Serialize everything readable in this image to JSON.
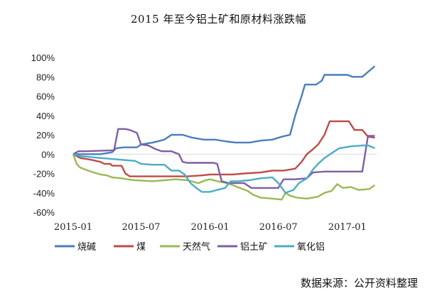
{
  "chart_data": {
    "type": "line",
    "title": "2015 年至今铝土矿和原材料涨跌幅",
    "xlabel": "",
    "ylabel": "",
    "x_tick_labels": [
      "2015-01",
      "2015-07",
      "2016-01",
      "2016-07",
      "2017-01"
    ],
    "x_range": [
      "2015-01-01",
      "2017-03-20"
    ],
    "ylim": [
      -60,
      100
    ],
    "y_tick_values": [
      -60,
      -40,
      -20,
      0,
      20,
      40,
      60,
      80,
      100
    ],
    "y_tick_labels": [
      "-60%",
      "-40%",
      "-20%",
      "0%",
      "20%",
      "40%",
      "60%",
      "80%",
      "100%"
    ],
    "grid": false,
    "legend_position": "bottom",
    "source_note": "数据来源：公开资料整理",
    "series": [
      {
        "name": "烧碱",
        "color": "#4a7ebb",
        "points": [
          [
            "2015-01-01",
            0
          ],
          [
            "2015-01-20",
            0
          ],
          [
            "2015-02-10",
            0
          ],
          [
            "2015-03-15",
            0
          ],
          [
            "2015-04-15",
            2
          ],
          [
            "2015-04-25",
            6
          ],
          [
            "2015-05-15",
            7
          ],
          [
            "2015-06-20",
            7
          ],
          [
            "2015-07-01",
            10
          ],
          [
            "2015-08-01",
            12
          ],
          [
            "2015-09-01",
            15
          ],
          [
            "2015-09-20",
            20
          ],
          [
            "2015-10-20",
            20
          ],
          [
            "2015-11-15",
            17
          ],
          [
            "2015-12-15",
            15
          ],
          [
            "2016-01-15",
            15
          ],
          [
            "2016-02-15",
            13
          ],
          [
            "2016-03-10",
            12
          ],
          [
            "2016-04-15",
            12
          ],
          [
            "2016-05-15",
            14
          ],
          [
            "2016-06-15",
            15
          ],
          [
            "2016-07-10",
            18
          ],
          [
            "2016-08-01",
            20
          ],
          [
            "2016-08-15",
            40
          ],
          [
            "2016-09-01",
            60
          ],
          [
            "2016-09-10",
            72
          ],
          [
            "2016-10-10",
            72
          ],
          [
            "2016-10-25",
            76
          ],
          [
            "2016-11-01",
            82
          ],
          [
            "2016-12-05",
            82
          ],
          [
            "2017-01-01",
            82
          ],
          [
            "2017-01-15",
            80
          ],
          [
            "2017-02-10",
            80
          ],
          [
            "2017-02-25",
            85
          ],
          [
            "2017-03-15",
            91
          ]
        ]
      },
      {
        "name": "煤",
        "color": "#be4b48",
        "points": [
          [
            "2015-01-01",
            0
          ],
          [
            "2015-01-20",
            -4
          ],
          [
            "2015-02-20",
            -6
          ],
          [
            "2015-03-15",
            -8
          ],
          [
            "2015-03-25",
            -10
          ],
          [
            "2015-04-10",
            -10
          ],
          [
            "2015-04-15",
            -12
          ],
          [
            "2015-05-10",
            -12
          ],
          [
            "2015-05-20",
            -20
          ],
          [
            "2015-06-01",
            -23
          ],
          [
            "2015-07-01",
            -23
          ],
          [
            "2015-09-01",
            -23
          ],
          [
            "2015-11-01",
            -23
          ],
          [
            "2015-12-10",
            -22
          ],
          [
            "2016-01-01",
            -21
          ],
          [
            "2016-03-01",
            -21
          ],
          [
            "2016-04-01",
            -20
          ],
          [
            "2016-05-15",
            -19
          ],
          [
            "2016-06-15",
            -17
          ],
          [
            "2016-07-15",
            -17
          ],
          [
            "2016-08-15",
            -15
          ],
          [
            "2016-09-01",
            -8
          ],
          [
            "2016-09-15",
            0
          ],
          [
            "2016-10-01",
            5
          ],
          [
            "2016-10-15",
            10
          ],
          [
            "2016-11-01",
            20
          ],
          [
            "2016-11-15",
            34
          ],
          [
            "2016-12-15",
            34
          ],
          [
            "2017-01-05",
            34
          ],
          [
            "2017-01-20",
            25
          ],
          [
            "2017-02-10",
            25
          ],
          [
            "2017-02-25",
            18
          ],
          [
            "2017-03-15",
            17
          ]
        ]
      },
      {
        "name": "天然气",
        "color": "#98b954",
        "points": [
          [
            "2015-01-01",
            0
          ],
          [
            "2015-01-10",
            -10
          ],
          [
            "2015-01-20",
            -14
          ],
          [
            "2015-02-10",
            -17
          ],
          [
            "2015-02-25",
            -19
          ],
          [
            "2015-03-15",
            -21
          ],
          [
            "2015-04-01",
            -22
          ],
          [
            "2015-04-15",
            -24
          ],
          [
            "2015-05-10",
            -25
          ],
          [
            "2015-05-25",
            -26
          ],
          [
            "2015-06-15",
            -27
          ],
          [
            "2015-08-01",
            -28
          ],
          [
            "2015-09-01",
            -27
          ],
          [
            "2015-10-01",
            -26
          ],
          [
            "2015-11-01",
            -27
          ],
          [
            "2015-12-01",
            -30
          ],
          [
            "2015-12-20",
            -27
          ],
          [
            "2016-01-01",
            -26
          ],
          [
            "2016-01-20",
            -28
          ],
          [
            "2016-02-15",
            -30
          ],
          [
            "2016-03-01",
            -32
          ],
          [
            "2016-03-20",
            -35
          ],
          [
            "2016-04-10",
            -38
          ],
          [
            "2016-04-25",
            -42
          ],
          [
            "2016-05-15",
            -45
          ],
          [
            "2016-06-15",
            -46
          ],
          [
            "2016-07-10",
            -47
          ],
          [
            "2016-07-20",
            -40
          ],
          [
            "2016-08-01",
            -43
          ],
          [
            "2016-08-20",
            -45
          ],
          [
            "2016-09-15",
            -46
          ],
          [
            "2016-10-15",
            -44
          ],
          [
            "2016-11-01",
            -40
          ],
          [
            "2016-11-20",
            -38
          ],
          [
            "2016-12-05",
            -31
          ],
          [
            "2016-12-20",
            -35
          ],
          [
            "2017-01-10",
            -34
          ],
          [
            "2017-02-01",
            -37
          ],
          [
            "2017-03-01",
            -36
          ],
          [
            "2017-03-15",
            -32
          ]
        ]
      },
      {
        "name": "铝土矿",
        "color": "#7e5fa4",
        "points": [
          [
            "2015-01-01",
            0
          ],
          [
            "2015-01-15",
            3
          ],
          [
            "2015-02-01",
            3
          ],
          [
            "2015-04-20",
            4
          ],
          [
            "2015-05-01",
            26
          ],
          [
            "2015-05-20",
            26
          ],
          [
            "2015-06-01",
            25
          ],
          [
            "2015-06-20",
            22
          ],
          [
            "2015-07-01",
            10
          ],
          [
            "2015-07-20",
            9
          ],
          [
            "2015-08-10",
            5
          ],
          [
            "2015-08-25",
            3
          ],
          [
            "2015-09-20",
            3
          ],
          [
            "2015-10-10",
            0
          ],
          [
            "2015-10-20",
            -8
          ],
          [
            "2015-11-01",
            -9
          ],
          [
            "2015-12-01",
            -9
          ],
          [
            "2016-01-10",
            -9
          ],
          [
            "2016-01-20",
            -10
          ],
          [
            "2016-02-01",
            -28
          ],
          [
            "2016-02-20",
            -30
          ],
          [
            "2016-03-15",
            -30
          ],
          [
            "2016-04-01",
            -30
          ],
          [
            "2016-04-20",
            -35
          ],
          [
            "2016-05-15",
            -35
          ],
          [
            "2016-06-15",
            -35
          ],
          [
            "2016-07-01",
            -35
          ],
          [
            "2016-07-15",
            -26
          ],
          [
            "2016-08-15",
            -26
          ],
          [
            "2016-09-15",
            -25
          ],
          [
            "2016-10-01",
            -19
          ],
          [
            "2016-11-01",
            -18
          ],
          [
            "2016-12-01",
            -18
          ],
          [
            "2017-01-01",
            -18
          ],
          [
            "2017-02-10",
            -18
          ],
          [
            "2017-02-25",
            19
          ],
          [
            "2017-03-15",
            19
          ]
        ]
      },
      {
        "name": "氧化铝",
        "color": "#4bacc6",
        "points": [
          [
            "2015-01-01",
            0
          ],
          [
            "2015-01-20",
            -2
          ],
          [
            "2015-02-15",
            -3
          ],
          [
            "2015-03-15",
            -4
          ],
          [
            "2015-04-15",
            -5
          ],
          [
            "2015-05-15",
            -6
          ],
          [
            "2015-06-15",
            -7
          ],
          [
            "2015-07-01",
            -10
          ],
          [
            "2015-08-01",
            -11
          ],
          [
            "2015-09-01",
            -11
          ],
          [
            "2015-09-20",
            -17
          ],
          [
            "2015-10-10",
            -17
          ],
          [
            "2015-10-25",
            -21
          ],
          [
            "2015-11-10",
            -30
          ],
          [
            "2015-11-25",
            -35
          ],
          [
            "2015-12-10",
            -39
          ],
          [
            "2016-01-01",
            -39
          ],
          [
            "2016-01-20",
            -37
          ],
          [
            "2016-02-10",
            -35
          ],
          [
            "2016-02-25",
            -28
          ],
          [
            "2016-03-15",
            -28
          ],
          [
            "2016-04-15",
            -27
          ],
          [
            "2016-05-15",
            -25
          ],
          [
            "2016-06-15",
            -24
          ],
          [
            "2016-07-01",
            -30
          ],
          [
            "2016-07-20",
            -40
          ],
          [
            "2016-08-10",
            -37
          ],
          [
            "2016-08-25",
            -30
          ],
          [
            "2016-09-15",
            -25
          ],
          [
            "2016-10-01",
            -16
          ],
          [
            "2016-10-15",
            -10
          ],
          [
            "2016-11-01",
            -4
          ],
          [
            "2016-11-20",
            1
          ],
          [
            "2016-12-10",
            6
          ],
          [
            "2017-01-10",
            8
          ],
          [
            "2017-02-10",
            9
          ],
          [
            "2017-02-25",
            9
          ],
          [
            "2017-03-10",
            7
          ],
          [
            "2017-03-15",
            6
          ]
        ]
      }
    ]
  }
}
